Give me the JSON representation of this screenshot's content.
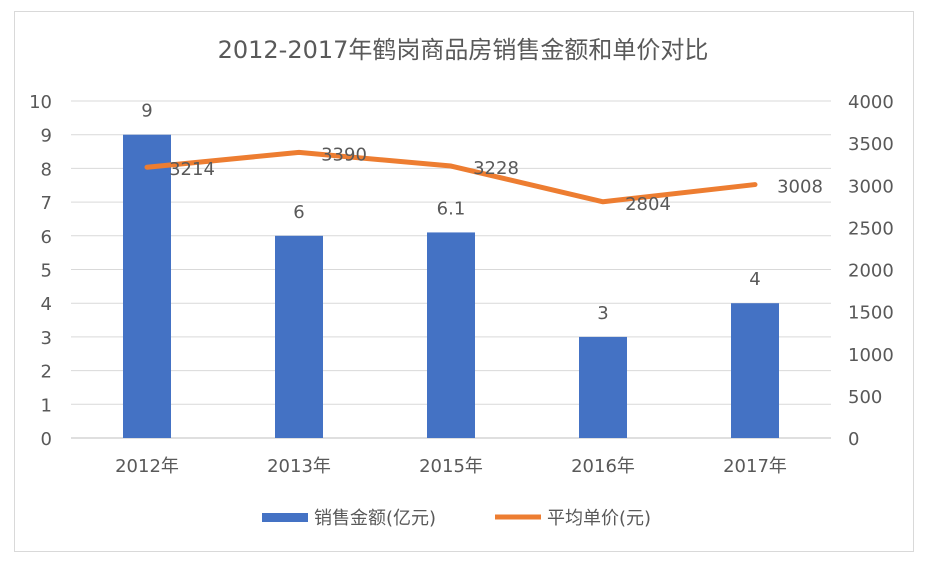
{
  "chart_data": {
    "type": "bar+line",
    "title": "2012-2017年鹤岗商品房销售金额和单价对比",
    "categories": [
      "2012年",
      "2013年",
      "2015年",
      "2016年",
      "2017年"
    ],
    "series": [
      {
        "name": "销售金额(亿元)",
        "type": "bar",
        "axis": "left",
        "values": [
          9,
          6,
          6.1,
          3,
          4
        ],
        "labels": [
          "9",
          "6",
          "6.1",
          "3",
          "4"
        ],
        "color": "#4472c4"
      },
      {
        "name": "平均单价(元)",
        "type": "line",
        "axis": "right",
        "values": [
          3214,
          3390,
          3228,
          2804,
          3008
        ],
        "labels": [
          "3214",
          "3390",
          "3228",
          "2804",
          "3008"
        ],
        "color": "#ed7d31"
      }
    ],
    "ylim": [
      0,
      10
    ],
    "y2lim": [
      0,
      4000
    ],
    "yticks": [
      "0",
      "1",
      "2",
      "3",
      "4",
      "5",
      "6",
      "7",
      "8",
      "9",
      "10"
    ],
    "y2ticks": [
      "0",
      "500",
      "1000",
      "1500",
      "2000",
      "2500",
      "3000",
      "3500",
      "4000"
    ],
    "grid": true,
    "legend": "bottom"
  }
}
